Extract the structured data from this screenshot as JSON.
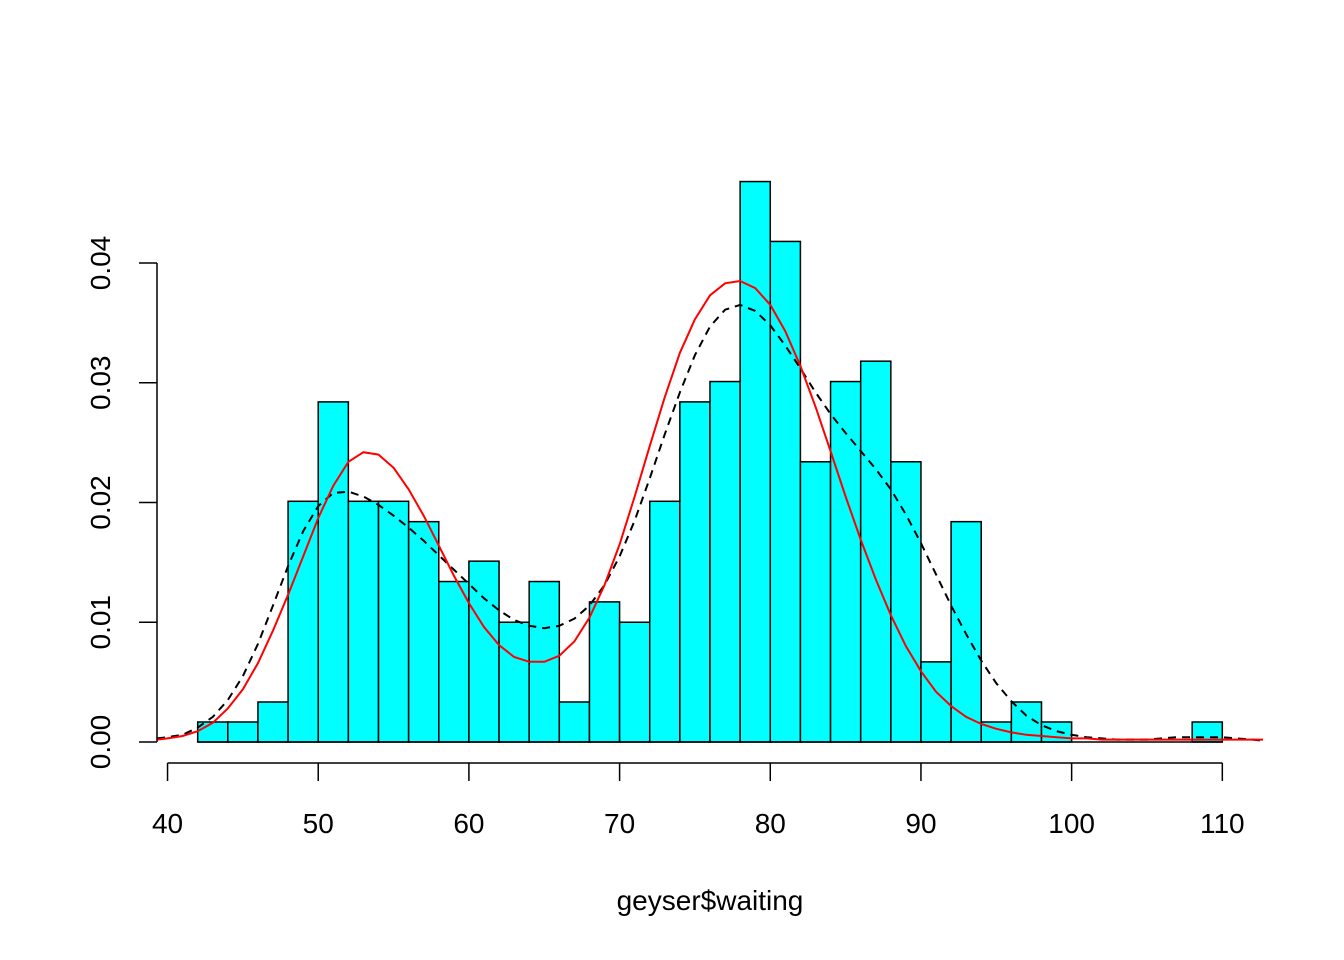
{
  "chart_data": {
    "type": "bar",
    "xlabel": "geyser$waiting",
    "ylabel": "",
    "title": "",
    "xlim": [
      39.3,
      112.7
    ],
    "ylim": [
      0,
      0.0486
    ],
    "x_ticks": [
      40,
      50,
      60,
      70,
      80,
      90,
      100,
      110
    ],
    "y_ticks": [
      0.0,
      0.01,
      0.02,
      0.03,
      0.04
    ],
    "x_tick_labels": [
      "40",
      "50",
      "60",
      "70",
      "80",
      "90",
      "100",
      "110"
    ],
    "y_tick_labels": [
      "0.00",
      "0.01",
      "0.02",
      "0.03",
      "0.04"
    ],
    "bins": {
      "breaks": [
        42,
        44,
        46,
        48,
        50,
        52,
        54,
        56,
        58,
        60,
        62,
        64,
        66,
        68,
        70,
        72,
        74,
        76,
        78,
        80,
        82,
        84,
        86,
        88,
        90,
        92,
        94,
        96,
        98,
        100,
        102,
        104,
        106,
        108,
        110
      ],
      "density": [
        0.00167,
        0.00167,
        0.00334,
        0.0201,
        0.0284,
        0.0201,
        0.0201,
        0.0184,
        0.0134,
        0.0151,
        0.01,
        0.0134,
        0.00334,
        0.0117,
        0.01,
        0.0201,
        0.0284,
        0.0301,
        0.0468,
        0.0418,
        0.0234,
        0.0301,
        0.0318,
        0.0234,
        0.00669,
        0.0184,
        0.00167,
        0.00334,
        0.00167,
        0,
        0,
        0,
        0,
        0.00167
      ]
    },
    "series": [
      {
        "kind": "curve",
        "style": "dashed",
        "color": "#000000",
        "x": [
          39.3,
          40,
          41,
          42,
          43,
          44,
          45,
          46,
          47,
          48,
          49,
          50,
          51,
          52,
          53,
          54,
          55,
          56,
          57,
          58,
          59,
          60,
          61,
          62,
          63,
          64,
          65,
          66,
          67,
          68,
          69,
          70,
          71,
          72,
          73,
          74,
          75,
          76,
          77,
          78,
          79,
          80,
          81,
          82,
          83,
          84,
          85,
          86,
          87,
          88,
          89,
          90,
          91,
          92,
          93,
          94,
          95,
          96,
          97,
          98,
          99,
          100,
          101,
          102,
          103,
          104,
          105,
          106,
          107,
          108,
          109,
          110,
          111,
          112,
          112.7
        ],
        "y": [
          0.0003,
          0.0004,
          0.0006,
          0.0012,
          0.0021,
          0.0035,
          0.0055,
          0.0082,
          0.0114,
          0.0147,
          0.0176,
          0.0197,
          0.0208,
          0.0209,
          0.0205,
          0.0198,
          0.0189,
          0.0179,
          0.0168,
          0.0156,
          0.0144,
          0.0132,
          0.012,
          0.011,
          0.0102,
          0.0097,
          0.0095,
          0.0097,
          0.0103,
          0.0114,
          0.0131,
          0.0155,
          0.0185,
          0.022,
          0.0257,
          0.0292,
          0.0323,
          0.0347,
          0.0361,
          0.0365,
          0.036,
          0.0348,
          0.0331,
          0.0312,
          0.0292,
          0.0274,
          0.0258,
          0.0243,
          0.0228,
          0.0211,
          0.019,
          0.0166,
          0.014,
          0.0114,
          0.009,
          0.0068,
          0.0049,
          0.0034,
          0.0022,
          0.0014,
          0.0009,
          0.0006,
          0.0004,
          0.0003,
          0.0002,
          0.0002,
          0.0002,
          0.0003,
          0.0004,
          0.0004,
          0.0004,
          0.0004,
          0.0003,
          0.0002,
          0.0001
        ]
      },
      {
        "kind": "curve",
        "style": "solid",
        "color": "#ff0000",
        "x": [
          39.3,
          40,
          41,
          42,
          43,
          44,
          45,
          46,
          47,
          48,
          49,
          50,
          51,
          52,
          53,
          54,
          55,
          56,
          57,
          58,
          59,
          60,
          61,
          62,
          63,
          64,
          65,
          66,
          67,
          68,
          69,
          70,
          71,
          72,
          73,
          74,
          75,
          76,
          77,
          78,
          79,
          80,
          81,
          82,
          83,
          84,
          85,
          86,
          87,
          88,
          89,
          90,
          91,
          92,
          93,
          94,
          95,
          96,
          97,
          98,
          99,
          100,
          101,
          102,
          103,
          104,
          105,
          106,
          107,
          108,
          109,
          110,
          111,
          112,
          112.7
        ],
        "y": [
          0.0002,
          0.0003,
          0.0005,
          0.0009,
          0.0016,
          0.0028,
          0.0044,
          0.0066,
          0.0093,
          0.0123,
          0.0155,
          0.0187,
          0.0214,
          0.0234,
          0.0242,
          0.024,
          0.0229,
          0.0211,
          0.0189,
          0.0164,
          0.0139,
          0.0116,
          0.0096,
          0.0081,
          0.0071,
          0.0067,
          0.0067,
          0.0072,
          0.0084,
          0.0104,
          0.0131,
          0.0165,
          0.0205,
          0.0247,
          0.0288,
          0.0325,
          0.0353,
          0.0373,
          0.0383,
          0.0385,
          0.0379,
          0.0365,
          0.0343,
          0.0314,
          0.028,
          0.0243,
          0.0205,
          0.0169,
          0.0136,
          0.0106,
          0.008,
          0.0059,
          0.0042,
          0.003,
          0.0021,
          0.0015,
          0.0011,
          0.0008,
          0.0006,
          0.0005,
          0.0004,
          0.0003,
          0.0003,
          0.0002,
          0.0002,
          0.0002,
          0.0002,
          0.0002,
          0.0002,
          0.0002,
          0.0002,
          0.0002,
          0.0002,
          0.0002,
          0.0002
        ]
      }
    ],
    "bar_fill": "#00ffff",
    "bar_stroke": "#000000",
    "grid": false,
    "legend": "none"
  }
}
